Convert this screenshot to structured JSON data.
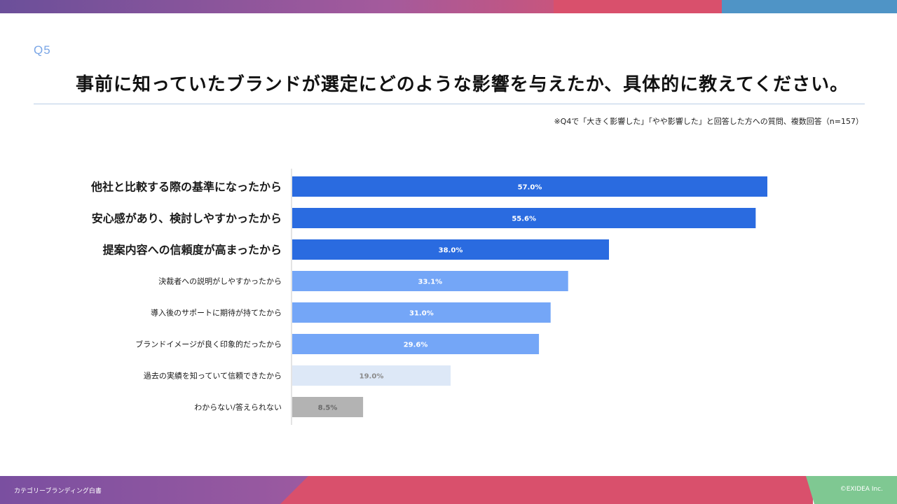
{
  "header": {
    "question_no": "Q5",
    "title": "事前に知っていたブランドが選定にどのような影響を与えたか、具体的に教えてください。",
    "note": "※Q4で「大きく影響した」「やや影響した」と回答した方への質問、複数回答（n=157）"
  },
  "footer": {
    "left": "カテゴリーブランディング白書",
    "right": "©EXIDEA Inc."
  },
  "colors": {
    "top": "#2a6be0",
    "mid": "#74a6f7",
    "light": "#dde8f7",
    "gray": "#b3b3b3",
    "band_purple": "#7d4f9e",
    "band_pink": "#d94a6a",
    "band_blue": "#4f94c6",
    "band_green": "#7fc892"
  },
  "chart_data": {
    "type": "bar",
    "orientation": "horizontal",
    "unit": "%",
    "xlim": [
      0,
      60
    ],
    "categories": [
      "他社と比較する際の基準になったから",
      "安心感があり、検討しやすかったから",
      "提案内容への信頼度が高まったから",
      "決裁者への説明がしやすかったから",
      "導入後のサポートに期待が持てたから",
      "ブランドイメージが良く印象的だったから",
      "過去の実績を知っていて信頼できたから",
      "わからない/答えられない"
    ],
    "values": [
      57.0,
      55.6,
      38.0,
      33.1,
      31.0,
      29.6,
      19.0,
      8.5
    ],
    "value_labels": [
      "57.0%",
      "55.6%",
      "38.0%",
      "33.1%",
      "31.0%",
      "29.6%",
      "19.0%",
      "8.5%"
    ],
    "tiers": [
      "top",
      "top",
      "top",
      "mid",
      "mid",
      "mid",
      "light",
      "gray"
    ]
  }
}
